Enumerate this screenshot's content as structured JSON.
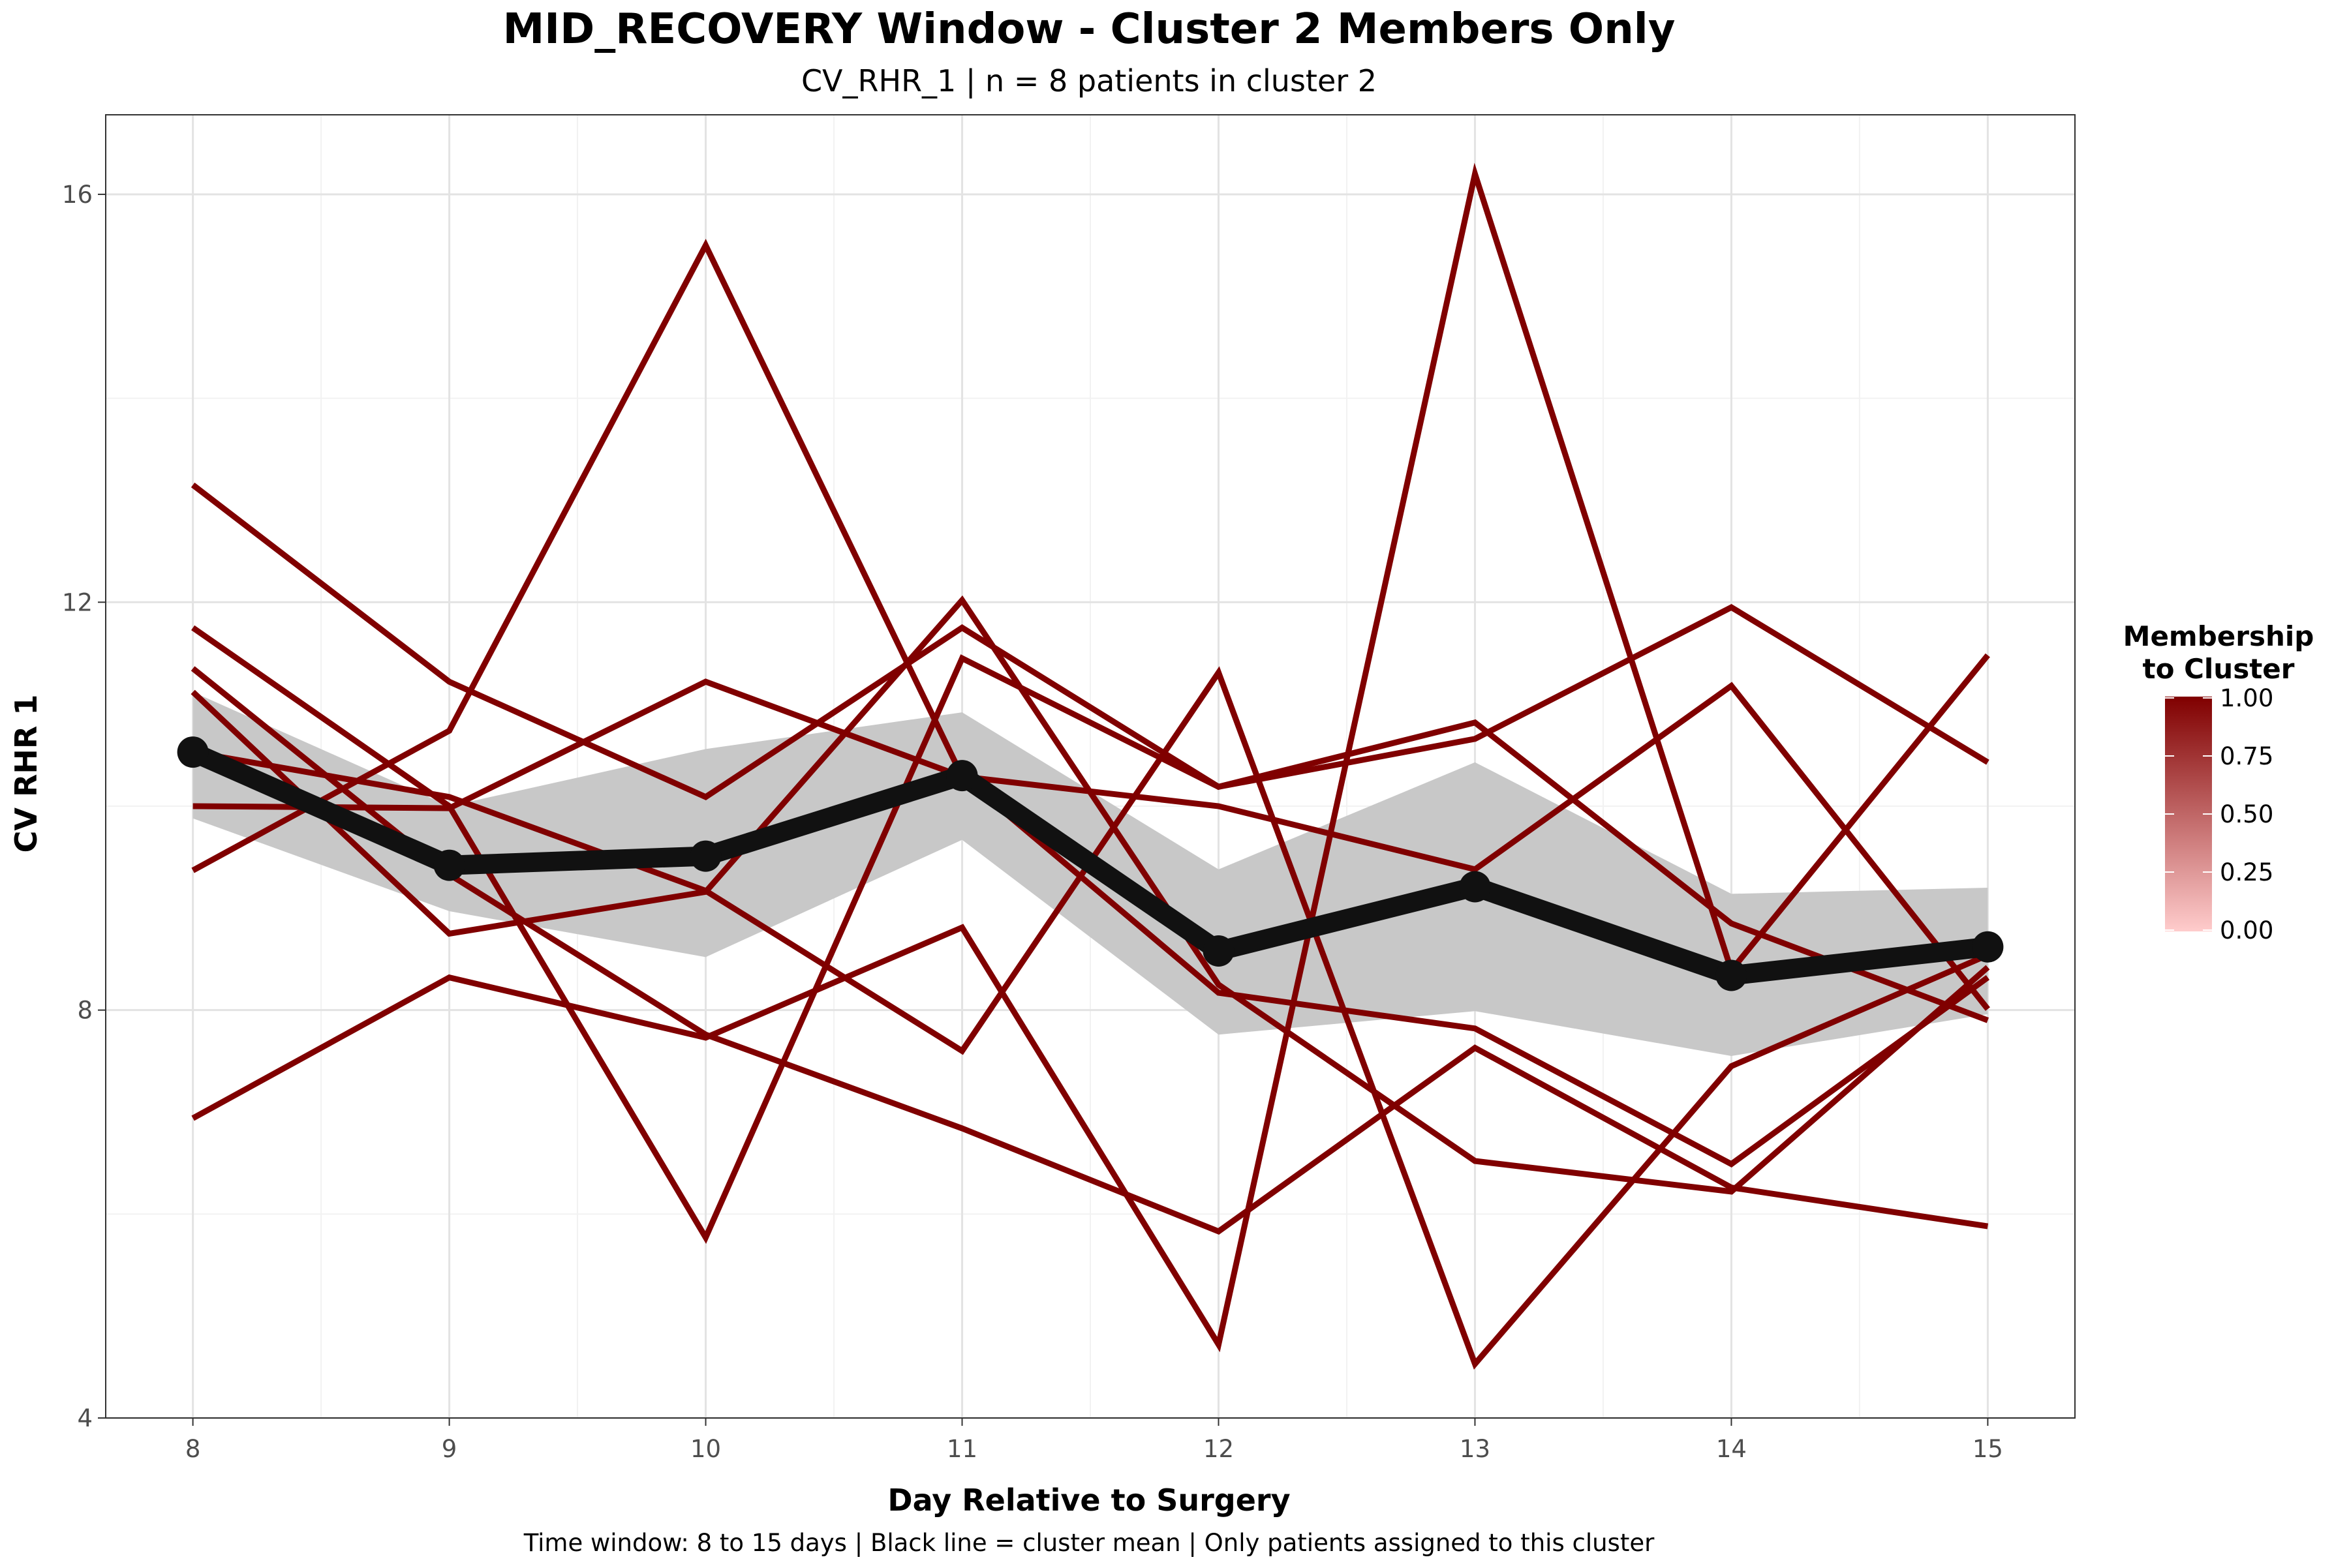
{
  "chart_data": {
    "type": "line",
    "title": "MID_RECOVERY Window - Cluster 2 Members Only",
    "subtitle": "CV_RHR_1 | n = 8 patients in cluster 2",
    "xlabel": "Day Relative to Surgery",
    "ylabel": "CV RHR 1",
    "caption": "Time window: 8 to 15 days | Black line = cluster mean | Only patients assigned to this cluster",
    "x": [
      8,
      9,
      10,
      11,
      12,
      13,
      14,
      15
    ],
    "xlim": [
      7.66,
      15.34
    ],
    "ylim": [
      4.0,
      16.78
    ],
    "xticks": [
      8,
      9,
      10,
      11,
      12,
      13,
      14,
      15
    ],
    "yticks": [
      4,
      8,
      12,
      16
    ],
    "grid": true,
    "line_color": "#800000",
    "mean_color": "#111111",
    "ribbon_color": "#c8c8c8",
    "series": [
      {
        "values": [
          13.15,
          11.22,
          10.09,
          11.75,
          10.19,
          10.66,
          11.95,
          10.43
        ]
      },
      {
        "values": [
          11.75,
          10.0,
          5.77,
          11.45,
          10.19,
          10.82,
          8.85,
          7.9
        ]
      },
      {
        "values": [
          9.37,
          10.74,
          15.5,
          10.29,
          8.17,
          7.82,
          6.49,
          8.32
        ]
      },
      {
        "values": [
          10.53,
          10.09,
          9.17,
          7.6,
          11.31,
          4.53,
          7.45,
          8.54
        ]
      },
      {
        "values": [
          10.0,
          9.98,
          11.22,
          10.29,
          10.0,
          9.38,
          11.18,
          8.01
        ]
      },
      {
        "values": [
          11.35,
          9.33,
          7.76,
          6.84,
          5.83,
          7.63,
          6.26,
          5.88
        ]
      },
      {
        "values": [
          11.12,
          8.75,
          9.16,
          12.02,
          8.25,
          6.52,
          6.22,
          8.42
        ]
      },
      {
        "values": [
          6.94,
          8.32,
          7.73,
          8.81,
          4.72,
          16.2,
          8.39,
          11.48
        ]
      }
    ],
    "mean": {
      "values": [
        10.53,
        9.42,
        9.51,
        10.3,
        8.58,
        9.21,
        8.34,
        8.62
      ]
    },
    "ribbon": {
      "upper": [
        11.12,
        10.0,
        10.56,
        10.92,
        9.38,
        10.43,
        9.14,
        9.2
      ],
      "lower": [
        9.88,
        8.97,
        8.52,
        9.67,
        7.76,
        7.99,
        7.55,
        7.96
      ]
    },
    "legend": {
      "title_line1": "Membership",
      "title_line2": "to Cluster",
      "position": "right",
      "breaks": [
        "1.00",
        "0.75",
        "0.50",
        "0.25",
        "0.00"
      ],
      "color_high": "#800000",
      "color_low": "#ffcccc"
    }
  }
}
